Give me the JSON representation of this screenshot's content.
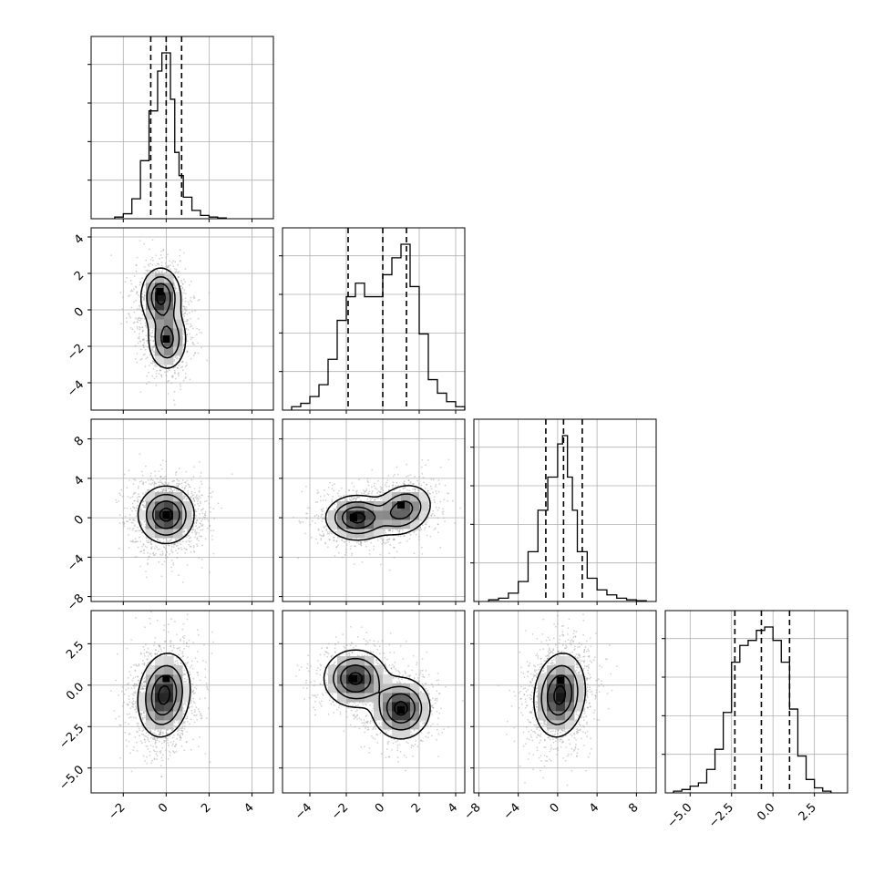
{
  "figure": {
    "kind": "corner-plot",
    "variables": 4,
    "quantile_lines": "dashed",
    "grid": true,
    "scatter_color": "#9e9e9e",
    "line_color": "#000000"
  },
  "chart_data": {
    "type": "corner",
    "grid": true,
    "axes": [
      {
        "range": [
          -3.5,
          5
        ],
        "ticks": [
          -2,
          0,
          2,
          4
        ],
        "tick_labels": [
          "−2",
          "0",
          "2",
          "4"
        ]
      },
      {
        "range": [
          -5.5,
          4.5
        ],
        "ticks": [
          -4,
          -2,
          0,
          2,
          4
        ],
        "tick_labels": [
          "−4",
          "−2",
          "0",
          "2",
          "4"
        ]
      },
      {
        "range": [
          -8.5,
          10
        ],
        "ticks": [
          -8,
          -4,
          0,
          4,
          8
        ],
        "tick_labels": [
          "−8",
          "−4",
          "0",
          "4",
          "8"
        ]
      },
      {
        "range": [
          -6.5,
          4.5
        ],
        "ticks": [
          -5.0,
          -2.5,
          0.0,
          2.5
        ],
        "tick_labels": [
          "−5.0",
          "−2.5",
          "0.0",
          "2.5"
        ]
      }
    ],
    "histograms": [
      {
        "variable": 0,
        "bin_edges": [
          -2.4,
          -2.0,
          -1.6,
          -1.2,
          -0.8,
          -0.4,
          -0.2,
          0.0,
          0.2,
          0.4,
          0.6,
          0.8,
          1.2,
          1.6,
          2.0,
          2.4,
          2.8
        ],
        "counts": [
          0.01,
          0.03,
          0.12,
          0.35,
          0.65,
          0.89,
          1.0,
          1.0,
          0.72,
          0.4,
          0.26,
          0.13,
          0.05,
          0.02,
          0.01,
          0.005
        ],
        "quantiles": [
          -0.72,
          0.0,
          0.72
        ]
      },
      {
        "variable": 1,
        "bin_edges": [
          -5.0,
          -4.5,
          -4.0,
          -3.5,
          -3.0,
          -2.5,
          -2.0,
          -1.5,
          -1.0,
          -0.5,
          0.0,
          0.5,
          1.0,
          1.5,
          2.0,
          2.5,
          3.0,
          3.5,
          4.0,
          4.5
        ],
        "counts": [
          0.02,
          0.04,
          0.08,
          0.15,
          0.3,
          0.53,
          0.67,
          0.75,
          0.67,
          0.67,
          0.8,
          0.9,
          0.98,
          0.73,
          0.45,
          0.18,
          0.1,
          0.05,
          0.02
        ],
        "quantiles": [
          -1.9,
          0.0,
          1.3
        ]
      },
      {
        "variable": 2,
        "bin_edges": [
          -7,
          -6,
          -5,
          -4,
          -3,
          -2,
          -1,
          0,
          0.5,
          1,
          1.5,
          2,
          3,
          4,
          5,
          6,
          7,
          8,
          9
        ],
        "counts": [
          0.01,
          0.02,
          0.05,
          0.12,
          0.3,
          0.55,
          0.75,
          0.95,
          1.0,
          0.75,
          0.55,
          0.3,
          0.14,
          0.07,
          0.04,
          0.02,
          0.01,
          0.005
        ],
        "quantiles": [
          -1.2,
          0.6,
          2.5
        ]
      },
      {
        "variable": 3,
        "bin_edges": [
          -6.0,
          -5.5,
          -5.0,
          -4.5,
          -4.0,
          -3.5,
          -3.0,
          -2.5,
          -2.0,
          -1.5,
          -1.0,
          -0.5,
          0.0,
          0.5,
          1.0,
          1.5,
          2.0,
          2.5,
          3.0,
          3.5
        ],
        "counts": [
          0.01,
          0.02,
          0.04,
          0.06,
          0.14,
          0.26,
          0.48,
          0.78,
          0.88,
          0.91,
          0.97,
          0.99,
          0.91,
          0.78,
          0.5,
          0.22,
          0.08,
          0.03,
          0.01
        ],
        "quantiles": [
          -2.3,
          -0.7,
          1.0
        ]
      }
    ],
    "panels": [
      {
        "x_var": 0,
        "y_var": 1,
        "modes": [
          {
            "mean": [
              -0.25,
              0.7
            ],
            "cov": [
              [
                0.2,
                0
              ],
              [
                0,
                0.6
              ]
            ],
            "weight": 0.55
          },
          {
            "mean": [
              0.05,
              -1.6
            ],
            "cov": [
              [
                0.2,
                0
              ],
              [
                0,
                0.7
              ]
            ],
            "weight": 0.45
          }
        ],
        "density_peaks": [
          [
            -0.3,
            1.0
          ],
          [
            0.0,
            -1.6
          ]
        ]
      },
      {
        "x_var": 0,
        "y_var": 2,
        "modes": [
          {
            "mean": [
              0.0,
              0.3
            ],
            "cov": [
              [
                0.4,
                0
              ],
              [
                0,
                2.0
              ]
            ],
            "weight": 1.0
          }
        ],
        "density_peaks": [
          [
            0.0,
            0.3
          ]
        ]
      },
      {
        "x_var": 1,
        "y_var": 2,
        "modes": [
          {
            "mean": [
              -1.4,
              0.0
            ],
            "cov": [
              [
                0.7,
                0
              ],
              [
                0,
                1.2
              ]
            ],
            "weight": 0.55
          },
          {
            "mean": [
              1.1,
              0.8
            ],
            "cov": [
              [
                0.6,
                0.2
              ],
              [
                0.2,
                1.6
              ]
            ],
            "weight": 0.45
          }
        ],
        "density_peaks": [
          [
            -1.6,
            0.0
          ],
          [
            1.0,
            1.3
          ]
        ]
      },
      {
        "x_var": 0,
        "y_var": 3,
        "modes": [
          {
            "mean": [
              -0.1,
              -0.6
            ],
            "cov": [
              [
                0.35,
                0.1
              ],
              [
                0.1,
                1.5
              ]
            ],
            "weight": 1.0
          }
        ],
        "density_peaks": [
          [
            0.0,
            0.4
          ]
        ]
      },
      {
        "x_var": 1,
        "y_var": 3,
        "modes": [
          {
            "mean": [
              -1.5,
              0.4
            ],
            "cov": [
              [
                0.7,
                0
              ],
              [
                0,
                0.7
              ]
            ],
            "weight": 0.5
          },
          {
            "mean": [
              1.0,
              -1.4
            ],
            "cov": [
              [
                0.6,
                0
              ],
              [
                0,
                0.8
              ]
            ],
            "weight": 0.5
          }
        ],
        "density_peaks": [
          [
            -1.6,
            0.4
          ],
          [
            1.0,
            -1.5
          ]
        ]
      },
      {
        "x_var": 2,
        "y_var": 3,
        "modes": [
          {
            "mean": [
              0.2,
              -0.6
            ],
            "cov": [
              [
                1.6,
                0.2
              ],
              [
                0.2,
                1.5
              ]
            ],
            "weight": 1.0
          }
        ],
        "density_peaks": [
          [
            0.3,
            0.3
          ]
        ]
      }
    ]
  }
}
